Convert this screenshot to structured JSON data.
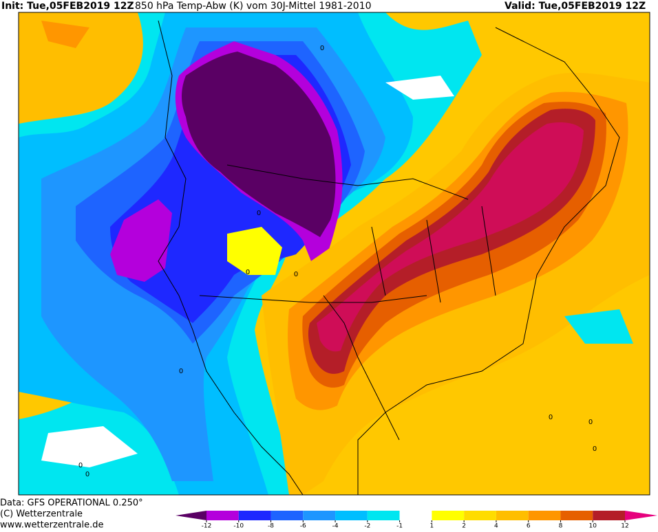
{
  "header": {
    "init": "Init: Tue,05FEB2019 12Z",
    "title": "850 hPa Temp-Abw (K) vom 30J-Mittel 1981-2010",
    "valid": "Valid: Tue,05FEB2019 12Z"
  },
  "footer": {
    "data": "Data: GFS OPERATIONAL 0.250°",
    "copyright": "(C) Wetterzentrale",
    "url": "www.wetterzentrale.de"
  },
  "map": {
    "contour_labels": [
      "0",
      "0",
      "0",
      "0",
      "0",
      "0",
      "0",
      "0",
      "0",
      "0"
    ]
  },
  "colorbar": {
    "ticks": [
      -12,
      -10,
      -8,
      -6,
      -4,
      -2,
      -1,
      1,
      2,
      4,
      6,
      8,
      10,
      12
    ],
    "colors": [
      "#5a0064",
      "#b400dc",
      "#1e28ff",
      "#1e64ff",
      "#1e96ff",
      "#00beff",
      "#00e6f0",
      "#ffffff",
      "#ffff00",
      "#ffdc00",
      "#ffbe00",
      "#ff9600",
      "#e65f00",
      "#b41e28",
      "#e6007d"
    ]
  }
}
